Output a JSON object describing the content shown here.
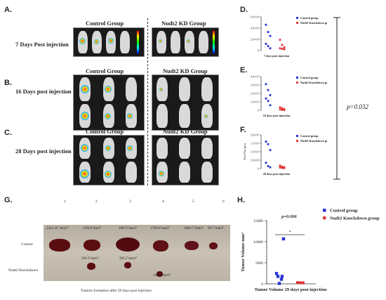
{
  "panels": {
    "A": {
      "letter": "A.",
      "row_label": "7 Days Post injection",
      "control": "Control Group",
      "kd": "Nudt2 KD Group"
    },
    "B": {
      "letter": "B.",
      "row_label": "16 Days post injection",
      "control": "Control Group",
      "kd": "Nudt2 KD Group"
    },
    "C": {
      "letter": "C.",
      "row_label": "28 Days post injection",
      "control": "Control Group",
      "kd": "Nudt2 KD Group"
    },
    "D": {
      "letter": "D."
    },
    "E": {
      "letter": "E."
    },
    "F": {
      "letter": "F."
    },
    "G": {
      "letter": "G."
    },
    "H": {
      "letter": "H."
    },
    "pvalue_right": "p=0.032"
  },
  "photo": {
    "col_numbers": [
      "1",
      "2",
      "3",
      "4",
      "5",
      "6"
    ],
    "control_values": [
      "2452.16 \"mm3\"",
      "1769.8\"mm3\"",
      "10673\"mm3\"",
      "1769.8\"mm3\"",
      "1084.7\"mm3\"",
      "99.7\"mm3\""
    ],
    "kd_values": [
      "296.5\"mm3\"",
      "285.5\"mm3\"",
      "246.5\"mm3\""
    ],
    "row_control": "Control",
    "row_kd": "Nudt2 Knockdown",
    "caption": "Tumors formation after 29 days post injection"
  },
  "chart_data": [
    {
      "type": "scatter",
      "panel": "D",
      "xlabel": "7 days post injection",
      "ylabel": "",
      "yticks": [
        "0",
        "2.0×10⁴",
        "4.0×10⁴",
        "6.0×10⁴"
      ],
      "ylim": [
        0,
        60000
      ],
      "series": [
        {
          "name": "Control group",
          "color": "#2a35d6",
          "marker": "square",
          "values": [
            46000,
            33000,
            26000,
            12000,
            8000,
            4000
          ]
        },
        {
          "name": "Nudt2 Knockdown group",
          "color": "#e03030",
          "marker": "circle",
          "values": [
            19000,
            10000,
            6000,
            4000,
            3000,
            2500
          ]
        }
      ]
    },
    {
      "type": "scatter",
      "panel": "E",
      "xlabel": "16 days post injection",
      "ylabel": "",
      "yticks": [
        "0",
        "1.0×10⁷",
        "2.0×10⁷",
        "3.0×10⁷",
        "4.0×10⁷"
      ],
      "ylim": [
        0,
        40000000
      ],
      "series": [
        {
          "name": "Control group",
          "color": "#2a35d6",
          "marker": "square",
          "values": [
            31000000,
            24000000,
            18000000,
            14000000,
            11000000,
            6000000
          ]
        },
        {
          "name": "Nudt2 Knockdown group",
          "color": "#e03030",
          "marker": "circle",
          "values": [
            3500000,
            2500000,
            1500000,
            1000000,
            500000,
            300000
          ]
        }
      ]
    },
    {
      "type": "scatter",
      "panel": "F",
      "xlabel": "28 days post injection",
      "ylabel": "Total Flux (p/s)",
      "yticks": [
        "0",
        "5.0×10⁸",
        "1.0×10⁹",
        "1.5×10⁹",
        "2.0×10⁹"
      ],
      "ylim": [
        0,
        2000000000
      ],
      "series": [
        {
          "name": "Control group",
          "color": "#2a35d6",
          "marker": "square",
          "values": [
            1600000000,
            1450000000,
            1100000000,
            350000000,
            150000000,
            80000000
          ]
        },
        {
          "name": "Nudt2 Knockdown group",
          "color": "#e03030",
          "marker": "circle",
          "values": [
            180000000,
            120000000,
            90000000,
            60000000,
            40000000,
            30000000
          ]
        }
      ]
    },
    {
      "type": "scatter",
      "panel": "H",
      "title": "p=0.006",
      "xlabel": "Tumor Volume 29 days post injection",
      "ylabel": "Tumor Volume mm³",
      "yticks": [
        "0",
        "5000",
        "10000",
        "15000"
      ],
      "ylim": [
        0,
        15000
      ],
      "significance": "*",
      "series": [
        {
          "name": "Control group",
          "color": "#2a35d6",
          "marker": "square",
          "values": [
            10673,
            2452,
            1770,
            1770,
            1085,
            100
          ]
        },
        {
          "name": "Nudt2 Knockdown group",
          "color": "#e03030",
          "marker": "circle",
          "values": [
            297,
            286,
            247
          ]
        }
      ]
    }
  ]
}
